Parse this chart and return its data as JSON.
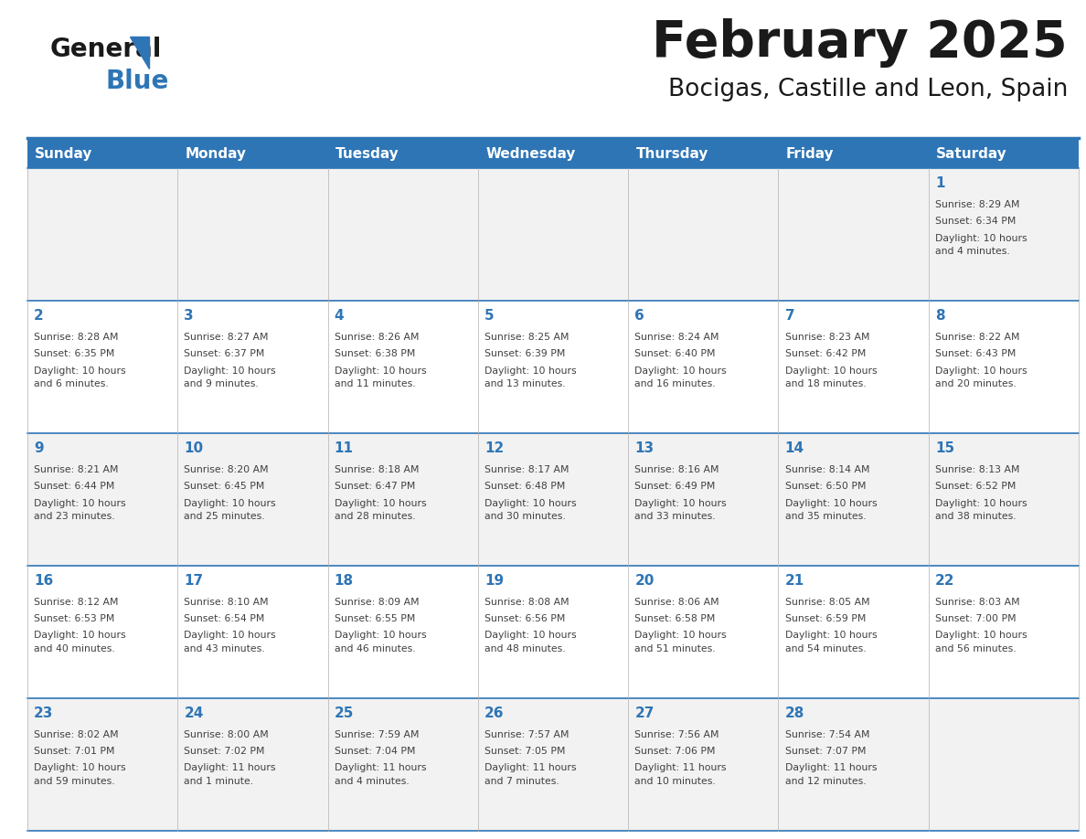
{
  "title": "February 2025",
  "subtitle": "Bocigas, Castille and Leon, Spain",
  "header_bg": "#2E75B6",
  "header_text_color": "#FFFFFF",
  "cell_bg_light": "#F2F2F2",
  "cell_bg_white": "#FFFFFF",
  "grid_line_color": "#2E75B6",
  "day_number_color": "#2E75B6",
  "text_color": "#404040",
  "weekdays": [
    "Sunday",
    "Monday",
    "Tuesday",
    "Wednesday",
    "Thursday",
    "Friday",
    "Saturday"
  ],
  "days": [
    {
      "day": 1,
      "col": 6,
      "row": 0,
      "sunrise": "8:29 AM",
      "sunset": "6:34 PM",
      "daylight_line1": "Daylight: 10 hours",
      "daylight_line2": "and 4 minutes."
    },
    {
      "day": 2,
      "col": 0,
      "row": 1,
      "sunrise": "8:28 AM",
      "sunset": "6:35 PM",
      "daylight_line1": "Daylight: 10 hours",
      "daylight_line2": "and 6 minutes."
    },
    {
      "day": 3,
      "col": 1,
      "row": 1,
      "sunrise": "8:27 AM",
      "sunset": "6:37 PM",
      "daylight_line1": "Daylight: 10 hours",
      "daylight_line2": "and 9 minutes."
    },
    {
      "day": 4,
      "col": 2,
      "row": 1,
      "sunrise": "8:26 AM",
      "sunset": "6:38 PM",
      "daylight_line1": "Daylight: 10 hours",
      "daylight_line2": "and 11 minutes."
    },
    {
      "day": 5,
      "col": 3,
      "row": 1,
      "sunrise": "8:25 AM",
      "sunset": "6:39 PM",
      "daylight_line1": "Daylight: 10 hours",
      "daylight_line2": "and 13 minutes."
    },
    {
      "day": 6,
      "col": 4,
      "row": 1,
      "sunrise": "8:24 AM",
      "sunset": "6:40 PM",
      "daylight_line1": "Daylight: 10 hours",
      "daylight_line2": "and 16 minutes."
    },
    {
      "day": 7,
      "col": 5,
      "row": 1,
      "sunrise": "8:23 AM",
      "sunset": "6:42 PM",
      "daylight_line1": "Daylight: 10 hours",
      "daylight_line2": "and 18 minutes."
    },
    {
      "day": 8,
      "col": 6,
      "row": 1,
      "sunrise": "8:22 AM",
      "sunset": "6:43 PM",
      "daylight_line1": "Daylight: 10 hours",
      "daylight_line2": "and 20 minutes."
    },
    {
      "day": 9,
      "col": 0,
      "row": 2,
      "sunrise": "8:21 AM",
      "sunset": "6:44 PM",
      "daylight_line1": "Daylight: 10 hours",
      "daylight_line2": "and 23 minutes."
    },
    {
      "day": 10,
      "col": 1,
      "row": 2,
      "sunrise": "8:20 AM",
      "sunset": "6:45 PM",
      "daylight_line1": "Daylight: 10 hours",
      "daylight_line2": "and 25 minutes."
    },
    {
      "day": 11,
      "col": 2,
      "row": 2,
      "sunrise": "8:18 AM",
      "sunset": "6:47 PM",
      "daylight_line1": "Daylight: 10 hours",
      "daylight_line2": "and 28 minutes."
    },
    {
      "day": 12,
      "col": 3,
      "row": 2,
      "sunrise": "8:17 AM",
      "sunset": "6:48 PM",
      "daylight_line1": "Daylight: 10 hours",
      "daylight_line2": "and 30 minutes."
    },
    {
      "day": 13,
      "col": 4,
      "row": 2,
      "sunrise": "8:16 AM",
      "sunset": "6:49 PM",
      "daylight_line1": "Daylight: 10 hours",
      "daylight_line2": "and 33 minutes."
    },
    {
      "day": 14,
      "col": 5,
      "row": 2,
      "sunrise": "8:14 AM",
      "sunset": "6:50 PM",
      "daylight_line1": "Daylight: 10 hours",
      "daylight_line2": "and 35 minutes."
    },
    {
      "day": 15,
      "col": 6,
      "row": 2,
      "sunrise": "8:13 AM",
      "sunset": "6:52 PM",
      "daylight_line1": "Daylight: 10 hours",
      "daylight_line2": "and 38 minutes."
    },
    {
      "day": 16,
      "col": 0,
      "row": 3,
      "sunrise": "8:12 AM",
      "sunset": "6:53 PM",
      "daylight_line1": "Daylight: 10 hours",
      "daylight_line2": "and 40 minutes."
    },
    {
      "day": 17,
      "col": 1,
      "row": 3,
      "sunrise": "8:10 AM",
      "sunset": "6:54 PM",
      "daylight_line1": "Daylight: 10 hours",
      "daylight_line2": "and 43 minutes."
    },
    {
      "day": 18,
      "col": 2,
      "row": 3,
      "sunrise": "8:09 AM",
      "sunset": "6:55 PM",
      "daylight_line1": "Daylight: 10 hours",
      "daylight_line2": "and 46 minutes."
    },
    {
      "day": 19,
      "col": 3,
      "row": 3,
      "sunrise": "8:08 AM",
      "sunset": "6:56 PM",
      "daylight_line1": "Daylight: 10 hours",
      "daylight_line2": "and 48 minutes."
    },
    {
      "day": 20,
      "col": 4,
      "row": 3,
      "sunrise": "8:06 AM",
      "sunset": "6:58 PM",
      "daylight_line1": "Daylight: 10 hours",
      "daylight_line2": "and 51 minutes."
    },
    {
      "day": 21,
      "col": 5,
      "row": 3,
      "sunrise": "8:05 AM",
      "sunset": "6:59 PM",
      "daylight_line1": "Daylight: 10 hours",
      "daylight_line2": "and 54 minutes."
    },
    {
      "day": 22,
      "col": 6,
      "row": 3,
      "sunrise": "8:03 AM",
      "sunset": "7:00 PM",
      "daylight_line1": "Daylight: 10 hours",
      "daylight_line2": "and 56 minutes."
    },
    {
      "day": 23,
      "col": 0,
      "row": 4,
      "sunrise": "8:02 AM",
      "sunset": "7:01 PM",
      "daylight_line1": "Daylight: 10 hours",
      "daylight_line2": "and 59 minutes."
    },
    {
      "day": 24,
      "col": 1,
      "row": 4,
      "sunrise": "8:00 AM",
      "sunset": "7:02 PM",
      "daylight_line1": "Daylight: 11 hours",
      "daylight_line2": "and 1 minute."
    },
    {
      "day": 25,
      "col": 2,
      "row": 4,
      "sunrise": "7:59 AM",
      "sunset": "7:04 PM",
      "daylight_line1": "Daylight: 11 hours",
      "daylight_line2": "and 4 minutes."
    },
    {
      "day": 26,
      "col": 3,
      "row": 4,
      "sunrise": "7:57 AM",
      "sunset": "7:05 PM",
      "daylight_line1": "Daylight: 11 hours",
      "daylight_line2": "and 7 minutes."
    },
    {
      "day": 27,
      "col": 4,
      "row": 4,
      "sunrise": "7:56 AM",
      "sunset": "7:06 PM",
      "daylight_line1": "Daylight: 11 hours",
      "daylight_line2": "and 10 minutes."
    },
    {
      "day": 28,
      "col": 5,
      "row": 4,
      "sunrise": "7:54 AM",
      "sunset": "7:07 PM",
      "daylight_line1": "Daylight: 11 hours",
      "daylight_line2": "and 12 minutes."
    }
  ],
  "num_rows": 5,
  "num_cols": 7,
  "fig_width": 11.88,
  "fig_height": 9.18,
  "dpi": 100
}
